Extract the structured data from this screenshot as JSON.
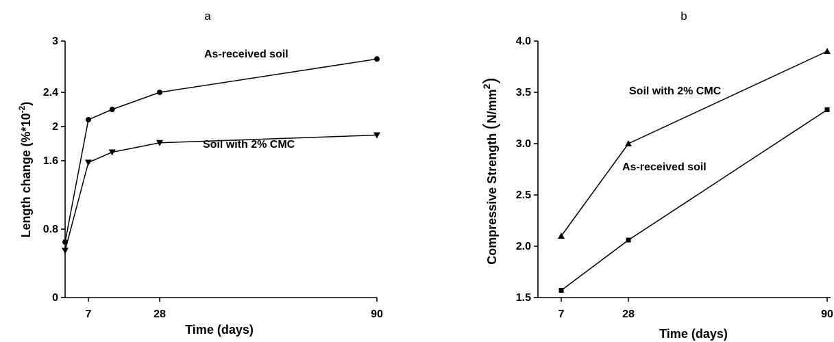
{
  "chart_data": [
    {
      "panel": "a",
      "type": "line",
      "title": "a",
      "xlabel": "Time (days)",
      "ylabel_main": "Length change (%*10",
      "ylabel_sup": "-2",
      "ylabel_close": ")",
      "x_ticks": [
        7,
        28,
        90
      ],
      "x_tick_labels": [
        "7",
        "28",
        "90"
      ],
      "xlim": [
        0,
        95
      ],
      "ylim": [
        0,
        3
      ],
      "y_ticks": [
        0,
        0.8,
        1.6,
        2,
        2.4,
        3
      ],
      "y_tick_labels": [
        "0",
        "0.8",
        "1.6",
        "2",
        "2.4",
        "3"
      ],
      "series": [
        {
          "name": "As-received soil",
          "marker": "circle",
          "x": [
            0,
            7,
            14,
            28,
            90
          ],
          "y": [
            0.65,
            2.08,
            2.2,
            2.4,
            2.79
          ]
        },
        {
          "name": "Soil with 2% CMC",
          "marker": "triangle-down",
          "x": [
            0,
            7,
            14,
            28,
            90
          ],
          "y": [
            0.55,
            1.58,
            1.7,
            1.81,
            1.9
          ]
        }
      ]
    },
    {
      "panel": "b",
      "type": "line",
      "title": "b",
      "xlabel": "Time (days)",
      "ylabel_main": "Compressive Strength ",
      "ylabel_unit": "N/mm",
      "ylabel_sup": "2",
      "x_ticks": [
        7,
        28,
        90
      ],
      "x_tick_labels": [
        "7",
        "28",
        "90"
      ],
      "xlim": [
        7,
        90
      ],
      "ylim": [
        1.5,
        4.0
      ],
      "y_ticks": [
        1.5,
        2.0,
        2.5,
        3.0,
        3.5,
        4.0
      ],
      "y_tick_labels": [
        "1.5",
        "2.0",
        "2.5",
        "3.0",
        "3.5",
        "4.0"
      ],
      "series": [
        {
          "name": "Soil with 2% CMC",
          "marker": "triangle-up",
          "x": [
            7,
            28,
            90
          ],
          "y": [
            2.1,
            3.0,
            3.9
          ]
        },
        {
          "name": "As-received soil",
          "marker": "square",
          "x": [
            7,
            28,
            90
          ],
          "y": [
            1.57,
            2.06,
            3.33
          ]
        }
      ]
    }
  ]
}
